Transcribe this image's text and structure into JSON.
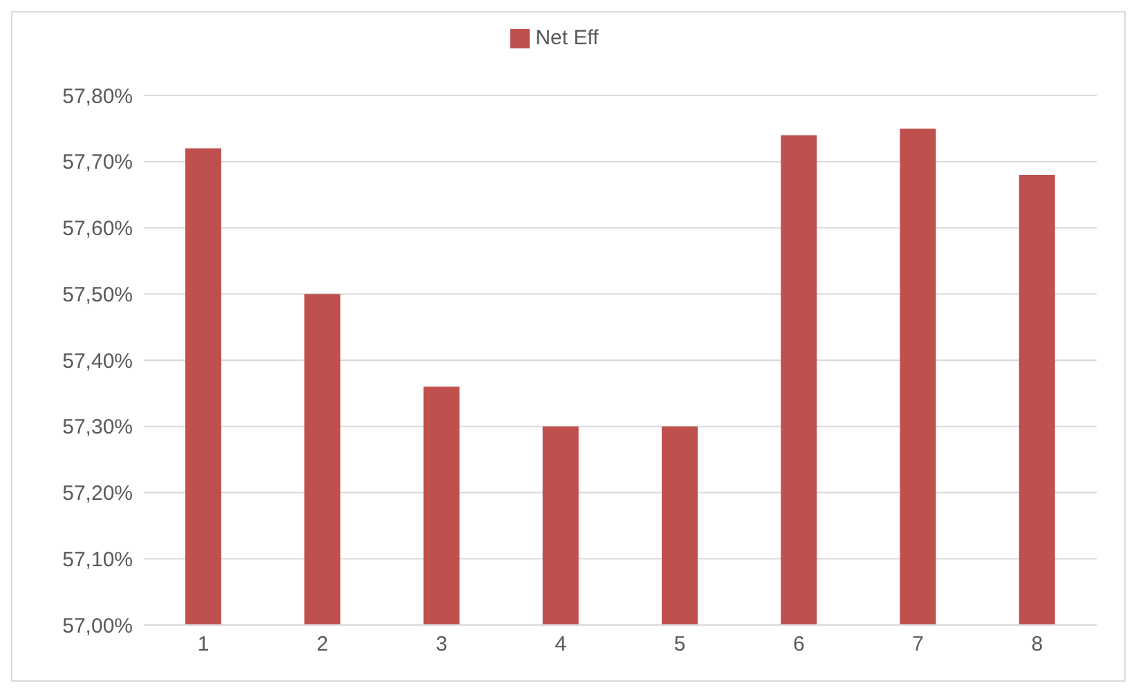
{
  "chart_data": {
    "type": "bar",
    "categories": [
      "1",
      "2",
      "3",
      "4",
      "5",
      "6",
      "7",
      "8"
    ],
    "series": [
      {
        "name": "Net Eff",
        "color": "#c0504d",
        "values": [
          57.72,
          57.5,
          57.36,
          57.3,
          57.3,
          57.74,
          57.75,
          57.68
        ]
      }
    ],
    "ylim": [
      57,
      57.8
    ],
    "yticks": [
      {
        "value": 57,
        "label": "57,00%"
      },
      {
        "value": 57.1,
        "label": "57,10%"
      },
      {
        "value": 57.2,
        "label": "57,20%"
      },
      {
        "value": 57.3,
        "label": "57,30%"
      },
      {
        "value": 57.4,
        "label": "57,40%"
      },
      {
        "value": 57.5,
        "label": "57,50%"
      },
      {
        "value": 57.6,
        "label": "57,60%"
      },
      {
        "value": 57.7,
        "label": "57,70%"
      },
      {
        "value": 57.8,
        "label": "57,80%"
      }
    ],
    "grid": "y",
    "legend": "top"
  }
}
